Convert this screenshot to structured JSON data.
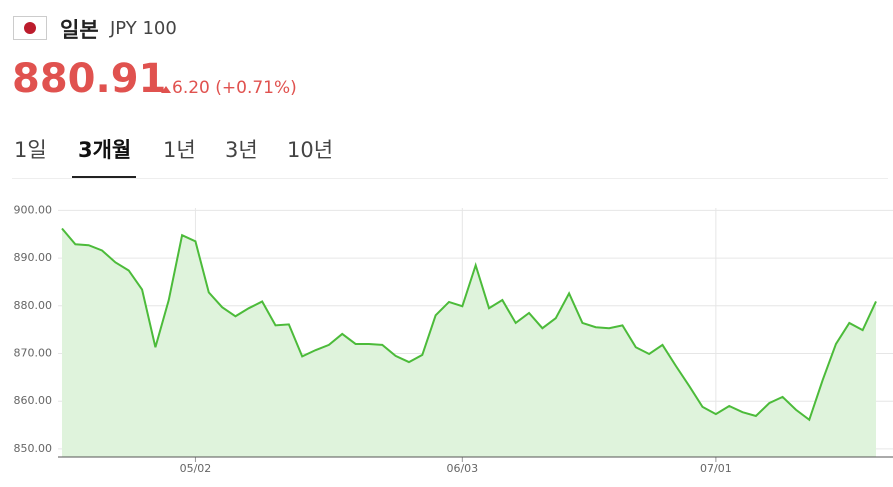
{
  "header": {
    "title": "일본",
    "subtitle": "JPY 100",
    "price": "880.91",
    "change": "6.20 (+0.71%)"
  },
  "tabs": {
    "items": [
      "1일",
      "3개월",
      "1년",
      "3년",
      "10년"
    ],
    "active": 1
  },
  "chart_data": {
    "type": "line",
    "categories": [
      null,
      null,
      null,
      null,
      null,
      null,
      null,
      null,
      null,
      null,
      "05/02",
      null,
      null,
      null,
      null,
      null,
      null,
      null,
      null,
      null,
      null,
      null,
      null,
      null,
      null,
      null,
      null,
      null,
      null,
      null,
      "06/03",
      null,
      null,
      null,
      null,
      null,
      null,
      null,
      null,
      null,
      null,
      null,
      null,
      null,
      null,
      null,
      null,
      null,
      null,
      "07/01",
      null,
      null,
      null,
      null,
      null,
      null,
      null,
      null,
      null,
      null,
      null,
      null
    ],
    "series": [
      {
        "color": "#4cbb3a",
        "fill": "#dff3dc",
        "values": [
          896.2,
          892.9,
          892.7,
          891.6,
          889.1,
          887.4,
          883.4,
          871.3,
          881.2,
          894.8,
          893.5,
          882.8,
          879.7,
          877.8,
          879.5,
          880.9,
          875.9,
          876.1,
          869.4,
          870.7,
          871.8,
          874.1,
          872.0,
          872.0,
          871.8,
          869.5,
          868.2,
          869.7,
          878.0,
          880.8,
          879.9,
          888.5,
          879.5,
          881.2,
          876.4,
          878.5,
          875.3,
          877.4,
          882.6,
          876.4,
          875.5,
          875.3,
          875.9,
          871.3,
          869.9,
          871.8,
          867.4,
          863.2,
          858.8,
          857.3,
          859.0,
          857.7,
          856.9,
          859.6,
          860.9,
          858.2,
          856.1,
          864.4,
          872.0,
          876.4,
          874.9,
          880.91
        ]
      }
    ],
    "ylim": [
      848.3,
      900.5
    ],
    "yticks": [
      {
        "value": 850,
        "label": "850.00"
      },
      {
        "value": 860,
        "label": "860.00"
      },
      {
        "value": 870,
        "label": "870.00"
      },
      {
        "value": 880,
        "label": "880.00"
      },
      {
        "value": 890,
        "label": "890.00"
      },
      {
        "value": 900,
        "label": "900.00"
      }
    ],
    "grid": true
  }
}
